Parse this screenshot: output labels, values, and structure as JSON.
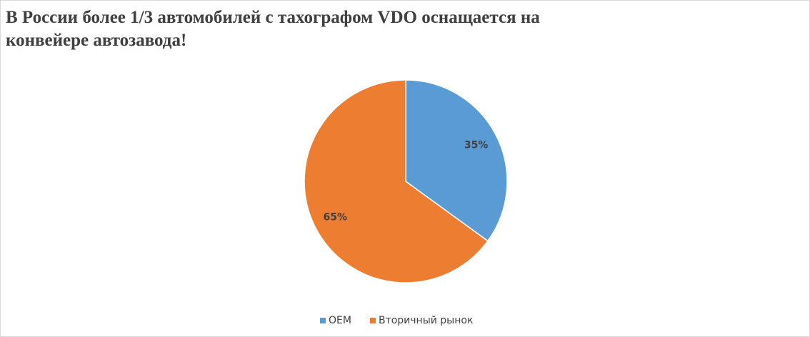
{
  "chart_data": {
    "type": "pie",
    "title": "В России более 1/3 автомобилей с тахографом VDO оснащается на конвейере автозавода!",
    "categories": [
      "OEM",
      "Вторичный рынок"
    ],
    "values": [
      35,
      65
    ],
    "value_labels": [
      "35%",
      "65%"
    ],
    "colors": [
      "#5b9bd5",
      "#ed7d31"
    ],
    "legend": "bottom"
  }
}
